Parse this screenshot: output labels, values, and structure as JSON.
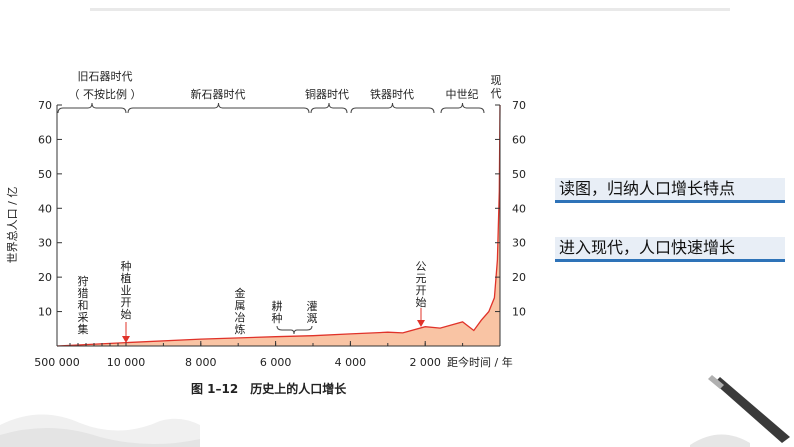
{
  "slide": {
    "points": [
      "读图，归纳人口增长特点",
      "进入现代，人口快速增长"
    ]
  },
  "chart_data": {
    "type": "area",
    "caption": "图 1–12　历史上的人口增长",
    "ylabel": "世界总人口 / 亿",
    "xlabel": "距今时间 / 年",
    "ylim": [
      0,
      70
    ],
    "yticks": [
      10,
      20,
      30,
      40,
      50,
      60,
      70
    ],
    "xticks": [
      "500 000",
      "10 000",
      "8 000",
      "6 000",
      "4 000",
      "2 000"
    ],
    "eras": [
      {
        "name": "旧石器时代",
        "note": "（ 不按比例 ）"
      },
      {
        "name": "新石器时代"
      },
      {
        "name": "铜器时代"
      },
      {
        "name": "铁器时代"
      },
      {
        "name": "中世纪"
      },
      {
        "name": "现代"
      }
    ],
    "annotations": [
      "狩猎和采集",
      "种植业开始",
      "金属冶炼",
      "耕种",
      "灌溉",
      "公元开始"
    ],
    "series": [
      {
        "x": [
          500000,
          10000,
          8000,
          6000,
          5000,
          4000,
          3000,
          2600,
          2000,
          1600,
          1000,
          700,
          500,
          300,
          150,
          70,
          20,
          0
        ],
        "values": [
          0,
          1,
          2,
          2.7,
          3,
          3.5,
          4,
          3.8,
          5.6,
          5.2,
          7,
          4.5,
          7.5,
          10,
          14,
          25,
          45,
          70
        ]
      }
    ]
  }
}
